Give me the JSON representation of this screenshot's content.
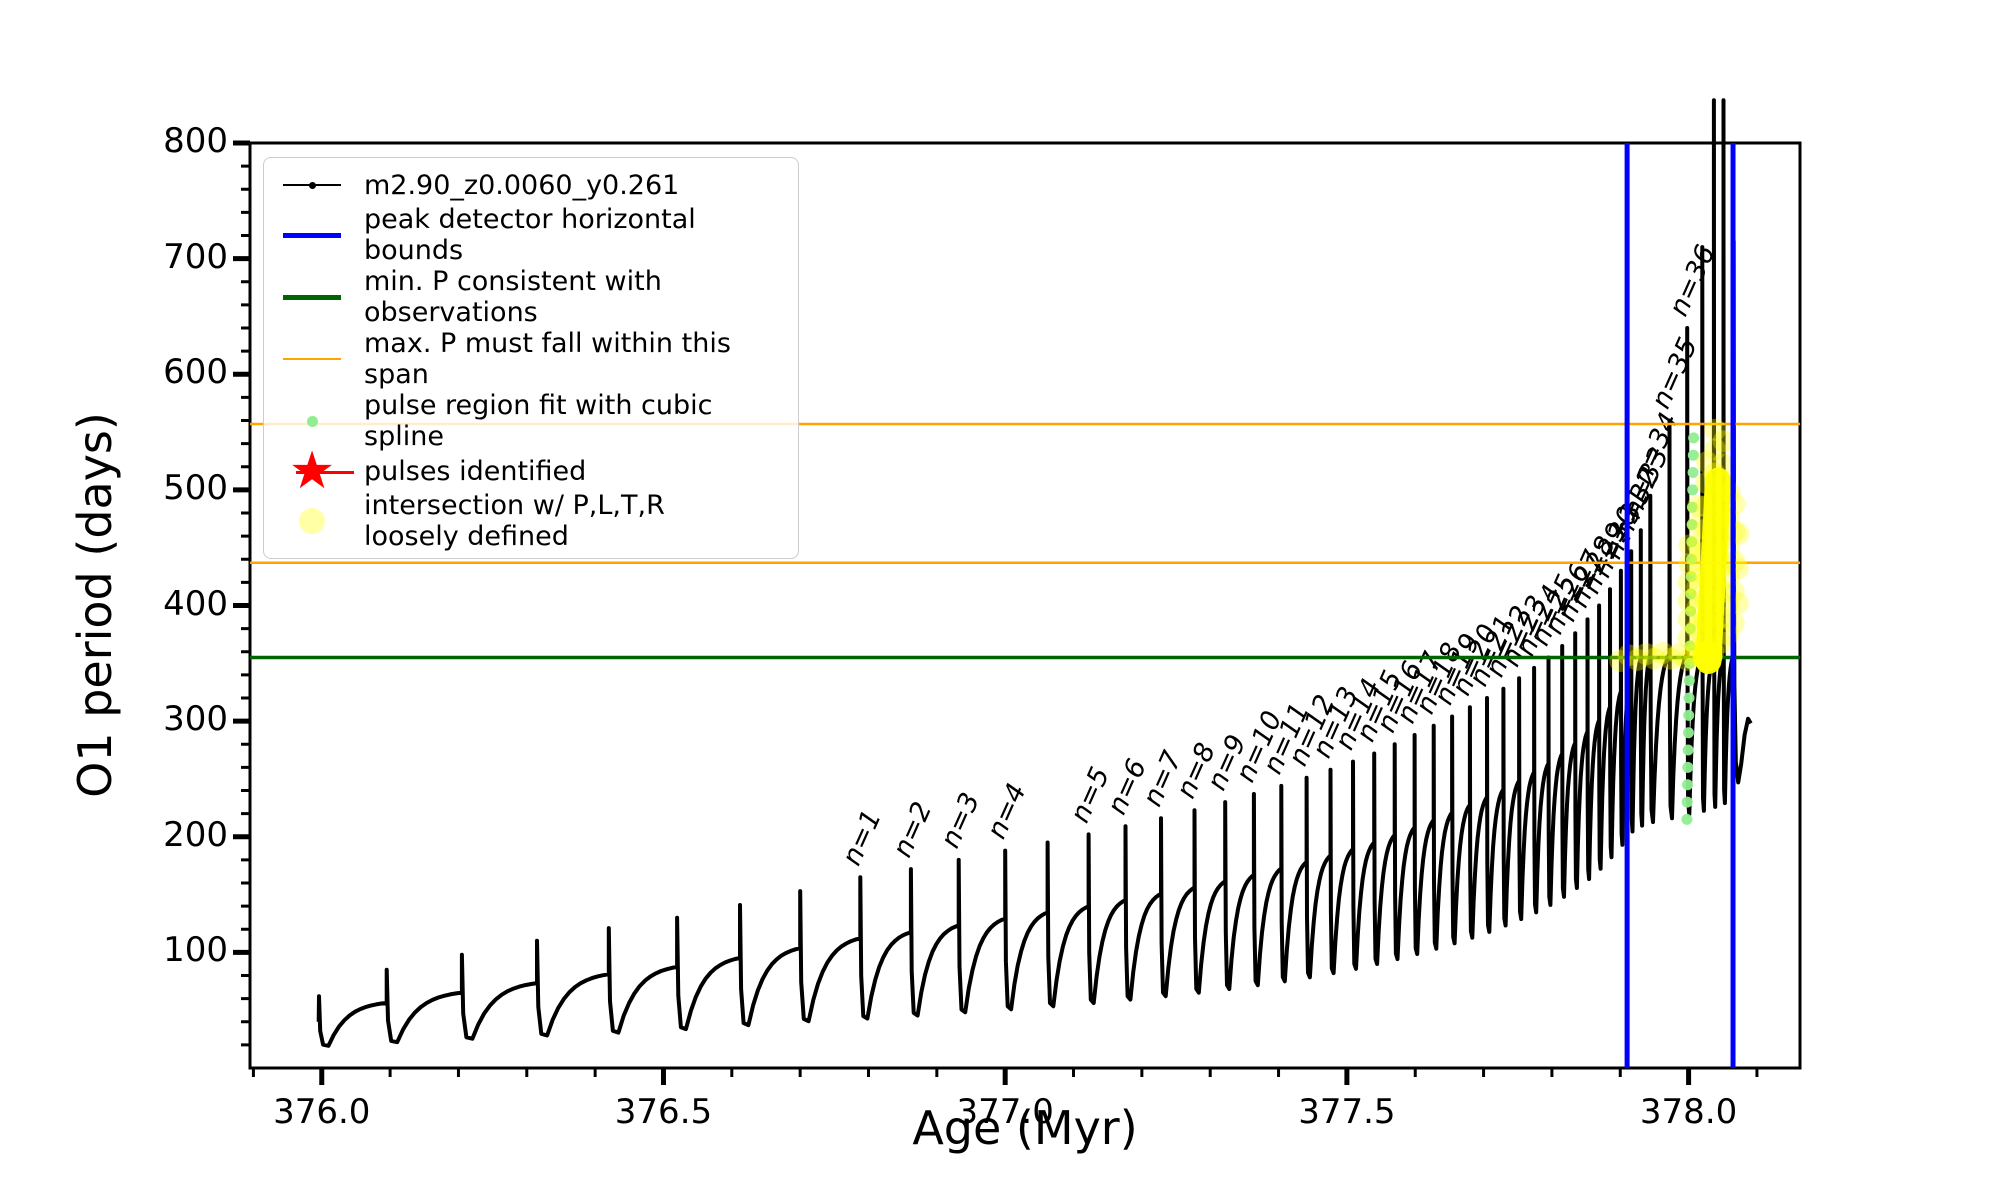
{
  "figure": {
    "xlabel": "Age (Myr)",
    "ylabel": "O1 period (days)"
  },
  "legend": {
    "items": [
      {
        "label": "m2.90_z0.0060_y0.261",
        "handle": "marked-line",
        "color": "#000000"
      },
      {
        "label": "peak detector horizontal bounds",
        "handle": "thick-line",
        "color": "#0000ff"
      },
      {
        "label": "min. P consistent with observations",
        "handle": "thick-line",
        "color": "#006400"
      },
      {
        "label": "max. P must fall within this span",
        "handle": "thin-line",
        "color": "#ffa500"
      },
      {
        "label": "pulse region fit with cubic spline",
        "handle": "small-dot",
        "color": "#90ee90"
      },
      {
        "label": "pulses identified",
        "handle": "star",
        "color": "#ff0000"
      },
      {
        "label": "intersection w/ P,L,T,R\nloosely defined",
        "handle": "big-dot",
        "color": "#ffff00"
      }
    ]
  },
  "colors": {
    "track": "#000000",
    "peak_detector_bounds": "#0000ff",
    "min_period_line": "#006400",
    "max_period_span": "#ffa500",
    "spline_fit_dots": "#90ee90",
    "pulses_identified": "#ff0000",
    "intersection_dots": "#ffff00"
  },
  "chart_data": {
    "type": "line",
    "title": "",
    "xlabel": "Age (Myr)",
    "ylabel": "O1 period (days)",
    "xlim": [
      375.895,
      378.163
    ],
    "ylim": [
      0,
      800
    ],
    "grid": false,
    "legend_position": "upper left",
    "x_ticks": [
      {
        "v": 376.0,
        "label": "376.0"
      },
      {
        "v": 376.5,
        "label": "376.5"
      },
      {
        "v": 377.0,
        "label": "377.0"
      },
      {
        "v": 377.5,
        "label": "377.5"
      },
      {
        "v": 378.0,
        "label": "378.0"
      }
    ],
    "y_ticks": [
      {
        "v": 100,
        "label": "100"
      },
      {
        "v": 200,
        "label": "200"
      },
      {
        "v": 300,
        "label": "300"
      },
      {
        "v": 400,
        "label": "400"
      },
      {
        "v": 500,
        "label": "500"
      },
      {
        "v": 600,
        "label": "600"
      },
      {
        "v": 700,
        "label": "700"
      },
      {
        "v": 800,
        "label": "800"
      }
    ],
    "x_minor_step": 0.1,
    "y_minor_step": 20,
    "series_name": "m2.90_z0.0060_y0.261",
    "track_start": [
      375.9955,
      40
    ],
    "pulses_columns": [
      "age_Myr",
      "peak_period_days",
      "pulse_number"
    ],
    "pulses": [
      [
        375.996,
        62,
        null
      ],
      [
        376.095,
        85,
        null
      ],
      [
        376.205,
        98,
        null
      ],
      [
        376.315,
        110,
        null
      ],
      [
        376.42,
        121,
        null
      ],
      [
        376.52,
        130,
        null
      ],
      [
        376.612,
        141,
        null
      ],
      [
        376.7,
        153,
        null
      ],
      [
        376.788,
        165,
        1
      ],
      [
        376.862,
        172,
        2
      ],
      [
        376.932,
        180,
        3
      ],
      [
        377.0,
        188,
        4
      ],
      [
        377.062,
        195,
        null
      ],
      [
        377.122,
        202,
        5
      ],
      [
        377.176,
        209,
        6
      ],
      [
        377.228,
        216,
        7
      ],
      [
        377.277,
        223,
        8
      ],
      [
        377.322,
        230,
        9
      ],
      [
        377.364,
        237,
        10
      ],
      [
        377.404,
        244,
        11
      ],
      [
        377.441,
        251,
        12
      ],
      [
        377.476,
        258,
        13
      ],
      [
        377.509,
        265,
        14
      ],
      [
        377.54,
        272,
        15
      ],
      [
        377.57,
        280,
        16
      ],
      [
        377.599,
        288,
        17
      ],
      [
        377.627,
        296,
        18
      ],
      [
        377.654,
        304,
        19
      ],
      [
        377.68,
        312,
        20
      ],
      [
        377.705,
        320,
        21
      ],
      [
        377.729,
        328,
        22
      ],
      [
        377.752,
        337,
        23
      ],
      [
        377.774,
        346,
        24
      ],
      [
        377.795,
        355,
        25
      ],
      [
        377.815,
        365,
        26
      ],
      [
        377.834,
        376,
        27
      ],
      [
        377.852,
        388,
        28
      ],
      [
        377.869,
        400,
        29
      ],
      [
        377.885,
        414,
        30
      ],
      [
        377.901,
        430,
        31
      ],
      [
        377.916,
        447,
        32
      ],
      [
        377.93,
        465,
        33
      ],
      [
        377.944,
        495,
        34
      ],
      [
        377.972,
        560,
        35
      ],
      [
        377.998,
        640,
        36
      ],
      [
        378.02,
        710,
        null
      ],
      [
        378.037,
        837,
        null
      ],
      [
        378.051,
        837,
        null
      ],
      [
        378.066,
        715,
        null
      ]
    ],
    "track_tail": [
      [
        378.0665,
        430
      ],
      [
        378.067,
        330
      ],
      [
        378.069,
        265
      ],
      [
        378.0725,
        247
      ],
      [
        378.077,
        263
      ],
      [
        378.082,
        288
      ],
      [
        378.087,
        302
      ],
      [
        378.091,
        298
      ]
    ],
    "hlines": [
      {
        "y": 355,
        "color": "#006400",
        "width": 3.5,
        "meaning": "min. P consistent with observations"
      },
      {
        "y": 437,
        "color": "#ffa500",
        "width": 2.5,
        "meaning": "max. P span lower edge"
      },
      {
        "y": 557,
        "color": "#ffa500",
        "width": 2.5,
        "meaning": "max. P span upper edge"
      }
    ],
    "vlines": [
      {
        "x": 377.91,
        "color": "#0000ff",
        "width": 5,
        "meaning": "peak detector left bound"
      },
      {
        "x": 378.065,
        "color": "#0000ff",
        "width": 5,
        "meaning": "peak detector right bound"
      }
    ],
    "spline_fit_region": {
      "age": 377.9975,
      "period_min": 215,
      "period_max": 555,
      "step": 15,
      "x_tilt_per_day": 3e-05
    },
    "pulses_identified_points": [],
    "intersection_streak": {
      "x1": 378.029,
      "y1": 352,
      "x2": 378.043,
      "y2": 508
    },
    "intersection_points": [
      [
        377.9,
        352
      ],
      [
        377.912,
        357
      ],
      [
        377.925,
        353
      ],
      [
        377.938,
        358
      ],
      [
        377.95,
        354
      ],
      [
        377.962,
        359
      ],
      [
        377.974,
        354
      ],
      [
        377.986,
        358
      ],
      [
        377.998,
        353
      ],
      [
        378.008,
        357
      ],
      [
        378.0,
        372
      ],
      [
        378.0,
        388
      ],
      [
        378.0,
        404
      ],
      [
        378.0,
        420
      ],
      [
        378.001,
        436
      ],
      [
        378.001,
        452
      ],
      [
        378.012,
        362
      ],
      [
        378.012,
        380
      ],
      [
        378.013,
        398
      ],
      [
        378.013,
        416
      ],
      [
        378.013,
        434
      ],
      [
        378.014,
        452
      ],
      [
        378.014,
        470
      ],
      [
        378.014,
        486
      ],
      [
        378.024,
        366
      ],
      [
        378.024,
        386
      ],
      [
        378.025,
        406
      ],
      [
        378.025,
        426
      ],
      [
        378.025,
        446
      ],
      [
        378.026,
        466
      ],
      [
        378.026,
        486
      ],
      [
        378.026,
        506
      ],
      [
        378.027,
        524
      ],
      [
        378.036,
        360
      ],
      [
        378.036,
        382
      ],
      [
        378.037,
        404
      ],
      [
        378.037,
        426
      ],
      [
        378.037,
        448
      ],
      [
        378.038,
        470
      ],
      [
        378.038,
        492
      ],
      [
        378.038,
        514
      ],
      [
        378.039,
        535
      ],
      [
        378.039,
        552
      ],
      [
        378.048,
        368
      ],
      [
        378.048,
        390
      ],
      [
        378.049,
        412
      ],
      [
        378.049,
        434
      ],
      [
        378.049,
        456
      ],
      [
        378.05,
        478
      ],
      [
        378.05,
        500
      ],
      [
        378.05,
        522
      ],
      [
        378.051,
        542
      ],
      [
        378.058,
        375
      ],
      [
        378.058,
        400
      ],
      [
        378.059,
        425
      ],
      [
        378.059,
        450
      ],
      [
        378.059,
        475
      ],
      [
        378.06,
        498
      ],
      [
        378.066,
        385
      ],
      [
        378.066,
        412
      ],
      [
        378.067,
        438
      ],
      [
        378.067,
        464
      ],
      [
        378.067,
        488
      ],
      [
        378.072,
        402
      ],
      [
        378.072,
        432
      ],
      [
        378.073,
        462
      ]
    ]
  }
}
